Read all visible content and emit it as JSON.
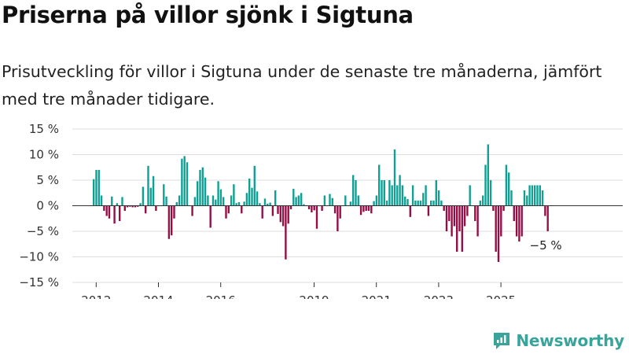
{
  "title": "Priserna på villor sjönk i Sigtuna",
  "subtitle": "Prisutveckling för villor i Sigtuna under de senaste tre månaderna, jämfört med tre månader tidigare.",
  "brand": {
    "name": "Newsworthy",
    "icon": "newsworthy-logo-icon"
  },
  "colors": {
    "positive": "#0fa094",
    "negative": "#950d45",
    "grid": "#dddddd",
    "brand": "#3aa39a"
  },
  "chart_data": {
    "type": "bar",
    "start": "2011-12",
    "ylim": [
      -15,
      15
    ],
    "y_ticks": [
      15,
      10,
      5,
      0,
      -5,
      -10,
      -15
    ],
    "y_tick_labels": [
      "15 %",
      "10 %",
      "5 %",
      "0 %",
      "−5 %",
      "−10 %",
      "−15 %"
    ],
    "x_ticks": [
      "2012",
      "2014",
      "2016",
      "2019",
      "2021",
      "2023",
      "2025"
    ],
    "annotation": "−5 %",
    "values": [
      5.2,
      7,
      7,
      2,
      -1,
      -2,
      -2.5,
      1.8,
      -3.5,
      0.5,
      -3,
      1.7,
      -1,
      -0.3,
      -0.2,
      -0.3,
      -0.3,
      -0.2,
      0.5,
      3.7,
      -1.5,
      7.8,
      3.5,
      5.8,
      -1,
      0,
      0,
      4.2,
      1.8,
      -6.5,
      -5.8,
      -2.5,
      0.7,
      2,
      9.2,
      9.7,
      8.5,
      0,
      -2,
      1.7,
      4.8,
      7,
      7.5,
      5.5,
      2,
      -4.3,
      2,
      1.2,
      4.8,
      3.2,
      1.7,
      -2.5,
      -1.5,
      2,
      4.2,
      0.5,
      0.7,
      -1.5,
      0.8,
      2.5,
      5.3,
      3.5,
      7.8,
      2.8,
      0.5,
      -2.5,
      1.4,
      0.4,
      0.6,
      -2,
      3,
      -1.6,
      -3.2,
      -4,
      -10.5,
      -3.5,
      -0.7,
      3.3,
      1.7,
      2,
      2.5,
      0.3,
      0,
      -0.7,
      -1.3,
      -0.9,
      -4.5,
      0,
      -1,
      2,
      0,
      2.3,
      1.5,
      -1.5,
      -5,
      -2.5,
      0,
      2,
      0,
      0.8,
      6,
      5,
      2,
      -1.8,
      -1.2,
      -1,
      -1,
      -1.5,
      0.9,
      2,
      8,
      5,
      5,
      1,
      5,
      4,
      11,
      4,
      6,
      4,
      1.8,
      1.3,
      -2.2,
      4,
      1,
      1,
      1,
      2.5,
      4,
      -2,
      1,
      1,
      5,
      3,
      1,
      -1,
      -5,
      -3,
      -6,
      -4,
      -9,
      -5,
      -9,
      -4,
      -2,
      4,
      0,
      -3,
      -6,
      1,
      2,
      8,
      12,
      5,
      -1,
      -9,
      -11,
      -6,
      -1,
      8,
      6.5,
      3,
      -3,
      -6,
      -7,
      -6,
      3,
      2,
      4,
      4,
      4,
      4,
      4,
      3,
      -2,
      -5
    ]
  }
}
